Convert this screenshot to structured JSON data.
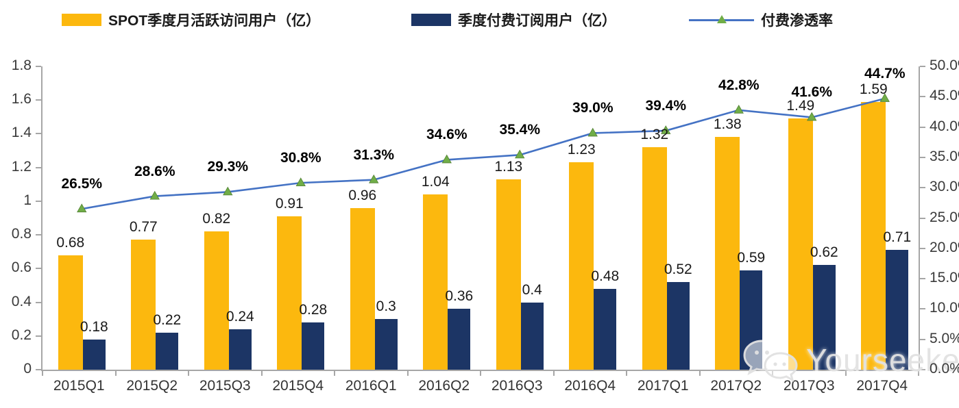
{
  "legend": [
    {
      "label": "SPOT季度月活跃访问用户（亿）",
      "color": "#FCB80E",
      "type": "bar"
    },
    {
      "label": "季度付费订阅用户（亿）",
      "color": "#1C3565",
      "type": "bar"
    },
    {
      "label": "付费渗透率",
      "color": "#4472C4",
      "marker_color": "#70AD47",
      "type": "line"
    }
  ],
  "watermark": {
    "text": "Yourseeker",
    "icon": "wechat-icon"
  },
  "chart_data": {
    "type": "bar+line combo",
    "categories": [
      "2015Q1",
      "2015Q2",
      "2015Q3",
      "2015Q4",
      "2016Q1",
      "2016Q2",
      "2016Q3",
      "2016Q4",
      "2017Q1",
      "2017Q2",
      "2017Q3",
      "2017Q4"
    ],
    "series": [
      {
        "name": "SPOT季度月活跃访问用户（亿）",
        "type": "bar",
        "axis": "left",
        "color": "#FCB80E",
        "values": [
          0.68,
          0.77,
          0.82,
          0.91,
          0.96,
          1.04,
          1.13,
          1.23,
          1.32,
          1.38,
          1.49,
          1.59
        ],
        "labels": [
          "0.68",
          "0.77",
          "0.82",
          "0.91",
          "0.96",
          "1.04",
          "1.13",
          "1.23",
          "1.32",
          "1.38",
          "1.49",
          "1.59"
        ]
      },
      {
        "name": "季度付费订阅用户（亿）",
        "type": "bar",
        "axis": "left",
        "color": "#1C3565",
        "values": [
          0.18,
          0.22,
          0.24,
          0.28,
          0.3,
          0.36,
          0.4,
          0.48,
          0.52,
          0.59,
          0.62,
          0.71
        ],
        "labels": [
          "0.18",
          "0.22",
          "0.24",
          "0.28",
          "0.3",
          "0.36",
          "0.4",
          "0.48",
          "0.52",
          "0.59",
          "0.62",
          "0.71"
        ]
      },
      {
        "name": "付费渗透率",
        "type": "line",
        "axis": "right",
        "color": "#4472C4",
        "marker": "triangle",
        "marker_color": "#70AD47",
        "values": [
          26.5,
          28.6,
          29.3,
          30.8,
          31.3,
          34.6,
          35.4,
          39.0,
          39.4,
          42.8,
          41.6,
          44.7
        ],
        "labels": [
          "26.5%",
          "28.6%",
          "29.3%",
          "30.8%",
          "31.3%",
          "34.6%",
          "35.4%",
          "39.0%",
          "39.4%",
          "42.8%",
          "41.6%",
          "44.7%"
        ]
      }
    ],
    "left_axis": {
      "min": 0,
      "max": 1.8,
      "step": 0.2,
      "ticks_top_to_bottom": [
        "1.8",
        "1.6",
        "1.4",
        "1.2",
        "1",
        "0.8",
        "0.6",
        "0.4",
        "0.2",
        "0"
      ]
    },
    "right_axis": {
      "min": 0,
      "max": 50,
      "step": 5,
      "ticks_top_to_bottom": [
        "50.0%",
        "45.0%",
        "40.0%",
        "35.0%",
        "30.0%",
        "25.0%",
        "20.0%",
        "15.0%",
        "10.0%",
        "5.0%",
        "0.0%"
      ]
    },
    "grid": "off",
    "legend_position": "top",
    "title": ""
  }
}
